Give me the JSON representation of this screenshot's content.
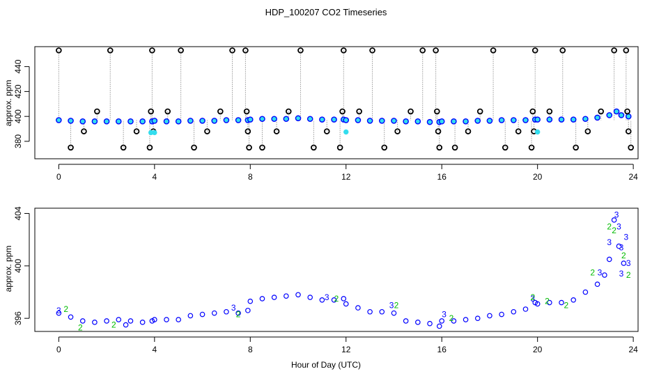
{
  "title": "HDP_100207  CO2 Timeseries",
  "xlabel": "Hour of Day (UTC)",
  "colors": {
    "blue": "#0000ff",
    "green": "#00bb00",
    "cyan": "#33ddee",
    "black": "#000000",
    "drop_line": "#999999"
  },
  "chart_data": [
    {
      "type": "scatter",
      "panel": "top",
      "title": "HDP_100207  CO2 Timeseries",
      "ylabel": "approx. ppm",
      "xlim": [
        -1,
        24.2
      ],
      "ylim": [
        366,
        456
      ],
      "xticks": [
        0,
        4,
        8,
        12,
        16,
        20,
        24
      ],
      "yticks": [
        380,
        400,
        420,
        440
      ],
      "grid": false,
      "series": [
        {
          "role": "baseline",
          "style": "blue circles, cyan fill",
          "points": [
            [
              0.0,
              397
            ],
            [
              0.5,
              396.5
            ],
            [
              1.0,
              396
            ],
            [
              1.5,
              396
            ],
            [
              2.0,
              396
            ],
            [
              2.5,
              396
            ],
            [
              3.0,
              396
            ],
            [
              3.5,
              396
            ],
            [
              3.9,
              396
            ],
            [
              4.0,
              396.5
            ],
            [
              4.5,
              396
            ],
            [
              5.0,
              396
            ],
            [
              5.5,
              396.5
            ],
            [
              6.0,
              396.5
            ],
            [
              6.5,
              396.5
            ],
            [
              7.0,
              397
            ],
            [
              7.5,
              397
            ],
            [
              7.9,
              397
            ],
            [
              8.0,
              397.5
            ],
            [
              8.5,
              398
            ],
            [
              9.0,
              398
            ],
            [
              9.5,
              398
            ],
            [
              10.0,
              398.5
            ],
            [
              10.5,
              398
            ],
            [
              11.0,
              397.5
            ],
            [
              11.5,
              397.5
            ],
            [
              11.9,
              397.5
            ],
            [
              12.0,
              397
            ],
            [
              12.5,
              397
            ],
            [
              13.0,
              396.5
            ],
            [
              13.5,
              396.5
            ],
            [
              14.0,
              396.5
            ],
            [
              14.5,
              396
            ],
            [
              15.0,
              396
            ],
            [
              15.5,
              395.5
            ],
            [
              15.9,
              395.5
            ],
            [
              16.0,
              396
            ],
            [
              16.5,
              396
            ],
            [
              17.0,
              396
            ],
            [
              17.5,
              396.5
            ],
            [
              18.0,
              396.5
            ],
            [
              18.5,
              397
            ],
            [
              19.0,
              397
            ],
            [
              19.5,
              397
            ],
            [
              19.9,
              397.5
            ],
            [
              20.0,
              397.5
            ],
            [
              20.5,
              397.5
            ],
            [
              21.0,
              397.5
            ],
            [
              21.5,
              397.5
            ],
            [
              22.0,
              398
            ],
            [
              22.5,
              399
            ],
            [
              23.0,
              401
            ],
            [
              23.3,
              404
            ],
            [
              23.5,
              401
            ],
            [
              23.8,
              400
            ]
          ]
        },
        {
          "role": "flags",
          "style": "black open circles with drop lines",
          "points": [
            [
              0.0,
              453
            ],
            [
              0.5,
              375
            ],
            [
              1.05,
              388
            ],
            [
              1.6,
              404
            ],
            [
              2.15,
              453
            ],
            [
              2.7,
              375
            ],
            [
              3.25,
              388
            ],
            [
              3.8,
              375
            ],
            [
              3.85,
              404
            ],
            [
              3.9,
              453
            ],
            [
              3.95,
              388
            ],
            [
              4.55,
              404
            ],
            [
              5.1,
              453
            ],
            [
              5.65,
              375
            ],
            [
              6.2,
              388
            ],
            [
              6.75,
              404
            ],
            [
              7.25,
              453
            ],
            [
              7.8,
              453
            ],
            [
              7.85,
              404
            ],
            [
              7.9,
              388
            ],
            [
              7.95,
              375
            ],
            [
              8.5,
              375
            ],
            [
              9.1,
              388
            ],
            [
              9.6,
              404
            ],
            [
              10.1,
              453
            ],
            [
              10.65,
              375
            ],
            [
              11.2,
              388
            ],
            [
              11.75,
              375
            ],
            [
              11.85,
              404
            ],
            [
              11.9,
              453
            ],
            [
              12.55,
              404
            ],
            [
              13.1,
              453
            ],
            [
              13.6,
              375
            ],
            [
              14.15,
              388
            ],
            [
              14.7,
              404
            ],
            [
              15.2,
              453
            ],
            [
              15.75,
              453
            ],
            [
              15.8,
              404
            ],
            [
              15.85,
              388
            ],
            [
              15.9,
              375
            ],
            [
              16.55,
              375
            ],
            [
              17.1,
              388
            ],
            [
              17.6,
              404
            ],
            [
              18.15,
              453
            ],
            [
              18.65,
              375
            ],
            [
              19.2,
              388
            ],
            [
              19.75,
              375
            ],
            [
              19.8,
              404
            ],
            [
              19.85,
              388
            ],
            [
              19.9,
              453
            ],
            [
              20.5,
              404
            ],
            [
              21.05,
              453
            ],
            [
              21.6,
              375
            ],
            [
              22.1,
              388
            ],
            [
              22.65,
              404
            ],
            [
              23.2,
              453
            ],
            [
              23.7,
              453
            ],
            [
              23.75,
              404
            ],
            [
              23.8,
              388
            ],
            [
              23.9,
              375
            ]
          ]
        },
        {
          "role": "highlight",
          "style": "cyan filled circles",
          "points": [
            [
              3.85,
              387
            ],
            [
              4.0,
              387
            ],
            [
              12.0,
              387.5
            ],
            [
              20.0,
              387.5
            ]
          ]
        }
      ]
    },
    {
      "type": "scatter",
      "panel": "bottom",
      "xlabel": "Hour of Day (UTC)",
      "ylabel": "approx. ppm",
      "xlim": [
        -1,
        24.2
      ],
      "ylim": [
        395.0,
        404.4
      ],
      "xticks": [
        0,
        4,
        8,
        12,
        16,
        20,
        24
      ],
      "yticks": [
        396,
        400,
        404
      ],
      "grid": false,
      "series": [
        {
          "role": "main",
          "style": "blue open circles",
          "points": [
            [
              0.0,
              396.4
            ],
            [
              0.5,
              396.1
            ],
            [
              1.0,
              395.8
            ],
            [
              1.5,
              395.7
            ],
            [
              2.0,
              395.8
            ],
            [
              2.5,
              395.9
            ],
            [
              2.8,
              395.5
            ],
            [
              3.0,
              395.8
            ],
            [
              3.5,
              395.7
            ],
            [
              3.9,
              395.8
            ],
            [
              4.0,
              395.9
            ],
            [
              4.5,
              395.9
            ],
            [
              5.0,
              395.9
            ],
            [
              5.5,
              396.2
            ],
            [
              6.0,
              396.3
            ],
            [
              6.5,
              396.4
            ],
            [
              7.0,
              396.5
            ],
            [
              7.5,
              396.4
            ],
            [
              7.9,
              396.6
            ],
            [
              8.0,
              397.3
            ],
            [
              8.5,
              397.5
            ],
            [
              9.0,
              397.6
            ],
            [
              9.5,
              397.7
            ],
            [
              10.0,
              397.8
            ],
            [
              10.5,
              397.6
            ],
            [
              11.0,
              397.4
            ],
            [
              11.5,
              397.4
            ],
            [
              11.9,
              397.5
            ],
            [
              12.0,
              397.1
            ],
            [
              12.5,
              396.8
            ],
            [
              13.0,
              396.5
            ],
            [
              13.5,
              396.5
            ],
            [
              14.0,
              396.4
            ],
            [
              14.5,
              395.8
            ],
            [
              15.0,
              395.7
            ],
            [
              15.5,
              395.6
            ],
            [
              15.9,
              395.4
            ],
            [
              16.0,
              395.8
            ],
            [
              16.5,
              395.8
            ],
            [
              17.0,
              395.9
            ],
            [
              17.5,
              396.0
            ],
            [
              18.0,
              396.2
            ],
            [
              18.5,
              396.3
            ],
            [
              19.0,
              396.5
            ],
            [
              19.5,
              396.7
            ],
            [
              19.9,
              397.2
            ],
            [
              20.0,
              397.1
            ],
            [
              20.5,
              397.2
            ],
            [
              21.0,
              397.2
            ],
            [
              21.5,
              397.4
            ],
            [
              22.0,
              398.0
            ],
            [
              22.5,
              398.6
            ],
            [
              22.8,
              399.3
            ],
            [
              23.0,
              400.5
            ],
            [
              23.2,
              403.5
            ],
            [
              23.4,
              401.5
            ],
            [
              23.6,
              400.2
            ]
          ]
        },
        {
          "role": "label-3",
          "style": "blue digit markers",
          "label": "3",
          "points": [
            [
              0.0,
              396.6
            ],
            [
              7.3,
              396.8
            ],
            [
              11.2,
              397.6
            ],
            [
              13.9,
              397.0
            ],
            [
              16.1,
              396.3
            ],
            [
              19.8,
              397.5
            ],
            [
              22.6,
              399.5
            ],
            [
              23.0,
              401.8
            ],
            [
              23.3,
              403.9
            ],
            [
              23.4,
              403.0
            ],
            [
              23.5,
              401.4
            ],
            [
              23.7,
              402.2
            ],
            [
              23.8,
              400.2
            ],
            [
              23.5,
              399.4
            ]
          ]
        },
        {
          "role": "label-2",
          "style": "green digit markers",
          "label": "2",
          "points": [
            [
              0.3,
              396.7
            ],
            [
              0.9,
              395.3
            ],
            [
              2.3,
              395.5
            ],
            [
              7.5,
              396.3
            ],
            [
              11.6,
              397.5
            ],
            [
              14.1,
              397.0
            ],
            [
              16.4,
              396.0
            ],
            [
              19.8,
              397.6
            ],
            [
              20.4,
              397.3
            ],
            [
              21.2,
              397.0
            ],
            [
              22.3,
              399.5
            ],
            [
              23.0,
              403.0
            ],
            [
              23.2,
              402.7
            ],
            [
              23.6,
              400.8
            ],
            [
              23.8,
              399.3
            ]
          ]
        }
      ]
    }
  ]
}
